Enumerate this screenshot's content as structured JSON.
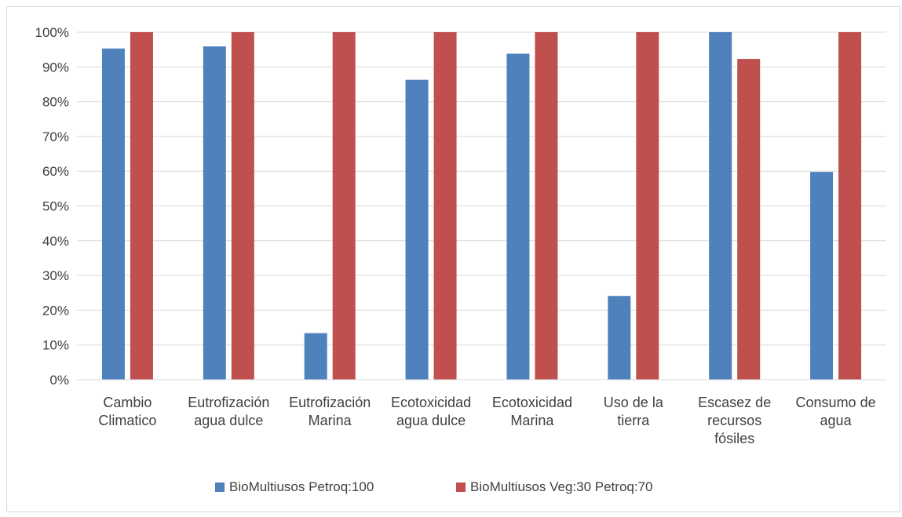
{
  "chart_data": {
    "type": "bar",
    "title": "",
    "xlabel": "",
    "ylabel": "",
    "categories": [
      [
        "Cambio",
        "Climatico"
      ],
      [
        "Eutrofización",
        "agua dulce"
      ],
      [
        "Eutrofización",
        "Marina"
      ],
      [
        "Ecotoxicidad",
        "agua dulce"
      ],
      [
        "Ecotoxicidad",
        "Marina"
      ],
      [
        "Uso de la",
        "tierra"
      ],
      [
        "Escasez de",
        "recursos",
        "fósiles"
      ],
      [
        "Consumo de",
        "agua"
      ]
    ],
    "y_ticks": [
      "0%",
      "10%",
      "20%",
      "30%",
      "40%",
      "50%",
      "60%",
      "70%",
      "80%",
      "90%",
      "100%"
    ],
    "ylim": [
      0,
      100
    ],
    "grid": true,
    "legend_position": "bottom",
    "series": [
      {
        "name": "BioMultiusos Petroq:100",
        "color": "#4f81bd",
        "values": [
          95.3,
          95.9,
          13.4,
          86.3,
          93.8,
          24.1,
          100,
          59.8
        ]
      },
      {
        "name": "BioMultiusos Veg:30 Petroq:70",
        "color": "#c0504d",
        "values": [
          100,
          100,
          100,
          100,
          100,
          100,
          92.3,
          100
        ]
      }
    ]
  }
}
